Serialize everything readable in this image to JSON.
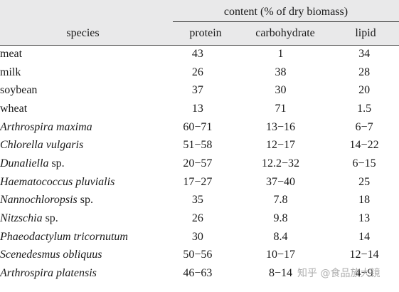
{
  "table": {
    "super_header": "content (% of dry biomass)",
    "columns": [
      "species",
      "protein",
      "carbohydrate",
      "lipid"
    ],
    "rows": [
      {
        "species": "meat",
        "italic": false,
        "suffix": "",
        "protein": "43",
        "carbohydrate": "1",
        "lipid": "34"
      },
      {
        "species": "milk",
        "italic": false,
        "suffix": "",
        "protein": "26",
        "carbohydrate": "38",
        "lipid": "28"
      },
      {
        "species": "soybean",
        "italic": false,
        "suffix": "",
        "protein": "37",
        "carbohydrate": "30",
        "lipid": "20"
      },
      {
        "species": "wheat",
        "italic": false,
        "suffix": "",
        "protein": "13",
        "carbohydrate": "71",
        "lipid": "1.5"
      },
      {
        "species": "Arthrospira maxima",
        "italic": true,
        "suffix": "",
        "protein": "60−71",
        "carbohydrate": "13−16",
        "lipid": "6−7"
      },
      {
        "species": "Chlorella vulgaris",
        "italic": true,
        "suffix": "",
        "protein": "51−58",
        "carbohydrate": "12−17",
        "lipid": "14−22"
      },
      {
        "species": "Dunaliella",
        "italic": true,
        "suffix": " sp.",
        "protein": "20−57",
        "carbohydrate": "12.2−32",
        "lipid": "6−15"
      },
      {
        "species": "Haematococcus pluvialis",
        "italic": true,
        "suffix": "",
        "protein": "17−27",
        "carbohydrate": "37−40",
        "lipid": "25"
      },
      {
        "species": "Nannochloropsis",
        "italic": true,
        "suffix": " sp.",
        "protein": "35",
        "carbohydrate": "7.8",
        "lipid": "18"
      },
      {
        "species": "Nitzschia",
        "italic": true,
        "suffix": " sp.",
        "protein": "26",
        "carbohydrate": "9.8",
        "lipid": "13"
      },
      {
        "species": "Phaeodactylum tricornutum",
        "italic": true,
        "suffix": "",
        "protein": "30",
        "carbohydrate": "8.4",
        "lipid": "14"
      },
      {
        "species": "Scenedesmus obliquus",
        "italic": true,
        "suffix": "",
        "protein": "50−56",
        "carbohydrate": "10−17",
        "lipid": "12−14"
      },
      {
        "species": "Arthrospira platensis",
        "italic": true,
        "suffix": "",
        "protein": "46−63",
        "carbohydrate": "8−14",
        "lipid": "4−9"
      }
    ]
  },
  "watermark": "知乎 @食品放大镜"
}
